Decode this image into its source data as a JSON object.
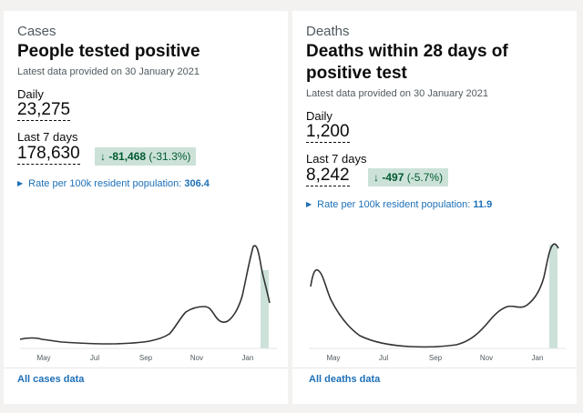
{
  "cases": {
    "caption": "Cases",
    "title": "People tested positive",
    "updated": "Latest data provided on 30 January 2021",
    "daily_label": "Daily",
    "daily_value": "23,275",
    "week_label": "Last 7 days",
    "week_value": "178,630",
    "change_arrow": "↓",
    "change_value": "-81,468",
    "change_pct": "(-31.3%)",
    "rate_label": "Rate per 100k resident population: ",
    "rate_value": "306.4",
    "link": "All cases data",
    "months": [
      "May",
      "Jul",
      "Sep",
      "Nov",
      "Jan"
    ]
  },
  "deaths": {
    "caption": "Deaths",
    "title": "Deaths within 28 days of positive test",
    "updated": "Latest data provided on 30 January 2021",
    "daily_label": "Daily",
    "daily_value": "1,200",
    "week_label": "Last 7 days",
    "week_value": "8,242",
    "change_arrow": "↓",
    "change_value": "-497",
    "change_pct": "(-5.7%)",
    "rate_label": "Rate per 100k resident population: ",
    "rate_value": "11.9",
    "link": "All deaths data",
    "months": [
      "May",
      "Jul",
      "Sep",
      "Nov",
      "Jan"
    ]
  },
  "colors": {
    "line": "#333333",
    "highlight": "#cce2d8",
    "link": "#1d70b8",
    "positive_change": "#005a30"
  }
}
